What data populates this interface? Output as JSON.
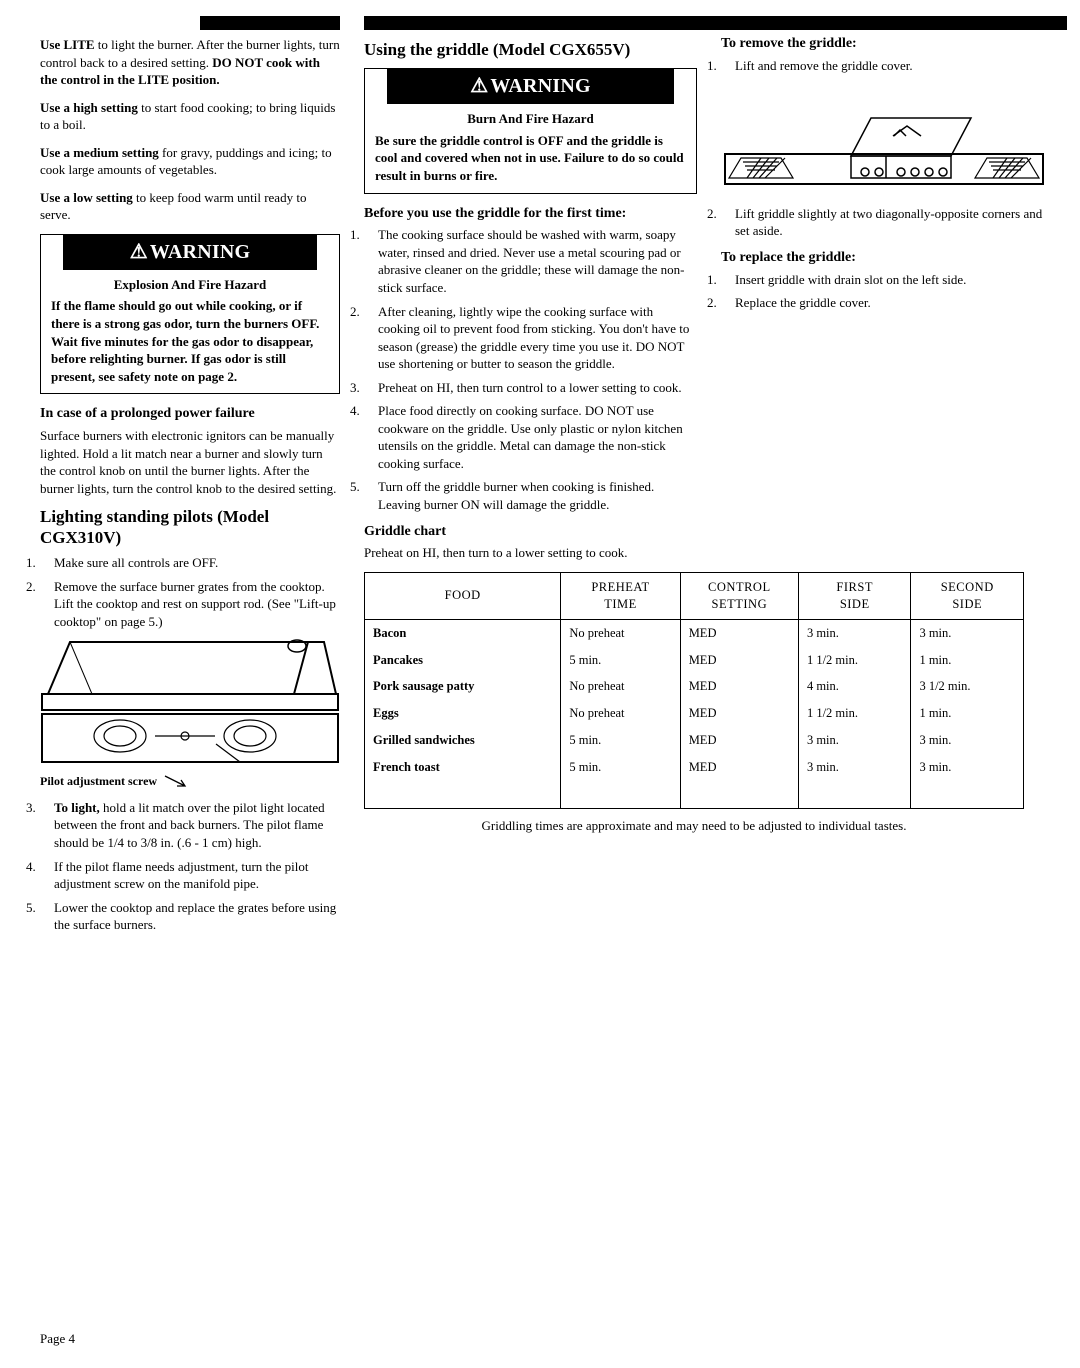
{
  "page_number": "Page 4",
  "left": {
    "p1": "Use LITE to light the burner. After the burner lights, turn control back to a desired setting. DO NOT cook with the control in the LITE position.",
    "p1_bold_phrases": [
      "Use LITE",
      "DO NOT cook with the control in the LITE position."
    ],
    "p2": "Use a high setting to start food cooking; to bring liquids to a boil.",
    "p3": "Use a medium setting for gravy, puddings and icing; to cook large amounts of vegetables.",
    "p4": "Use a low setting to keep food warm until ready to serve.",
    "warning": {
      "bar": "WARNING",
      "title": "Explosion And Fire Hazard",
      "body": "If the flame should go out while cooking, or if there is a strong gas odor, turn the burners OFF. Wait five minutes for the gas odor to disappear, before relighting burner. If gas odor is still present, see safety note on page 2."
    },
    "prolonged_power_heading": "In case of a prolonged power failure",
    "prolonged_power_body": "Surface burners with electronic ignitors can be manually lighted. Hold a lit match near a burner and slowly turn the control knob on until the burner lights. After the burner lights, turn the control knob to the desired setting.",
    "lighting_heading": "Lighting standing pilots (Model CGX310V)",
    "lighting_steps_pre": [
      "Make sure all controls are OFF.",
      "Remove the surface burner grates from the cooktop. Lift the cooktop and rest on support rod. (See \"Lift-up cooktop\" on page 5.)"
    ],
    "fig_caption": "Pilot adjustment screw",
    "lighting_steps_post": [
      "To light, hold a lit match over the pilot light located between the front and back burners. The pilot flame should be 1/4 to 3/8 in. (.6 - 1 cm) high.",
      "If the pilot flame needs adjustment, turn the pilot adjustment screw on the manifold pipe.",
      "Lower the cooktop and replace the grates before using the surface burners."
    ]
  },
  "mid": {
    "heading": "Using the griddle (Model CGX655V)",
    "warning": {
      "bar": "WARNING",
      "title": "Burn And Fire Hazard",
      "body": "Be sure the griddle control is OFF and the griddle is cool and covered when not in use. Failure to do so could result in burns or fire."
    },
    "before_heading": "Before you use the griddle for the first time:",
    "before_steps": [
      "The cooking surface should be washed with warm, soapy water, rinsed and dried. Never use a metal scouring pad or abrasive cleaner on the griddle; these will damage the non-stick surface.",
      "After cleaning, lightly wipe the cooking surface with cooking oil to prevent food from sticking. You don't have to season (grease) the griddle every time you use it. DO NOT use shortening or butter to season the griddle.",
      "Preheat on HI, then turn control to a lower setting to cook.",
      "Place food directly on cooking surface. DO NOT use cookware on the griddle. Use only plastic or nylon kitchen utensils on the griddle. Metal can damage the non-stick cooking surface.",
      "Turn off the griddle burner when cooking is finished. Leaving burner ON will damage the griddle."
    ],
    "chart_heading": "Griddle chart",
    "chart_intro": "Preheat on HI, then turn to a lower setting to cook.",
    "table": {
      "headers": [
        "FOOD",
        "PREHEAT TIME",
        "CONTROL SETTING",
        "FIRST SIDE",
        "SECOND SIDE"
      ],
      "rows": [
        [
          "Bacon",
          "No preheat",
          "MED",
          "3 min.",
          "3  min."
        ],
        [
          "Pancakes",
          "5 min.",
          "MED",
          "1 1/2 min.",
          "1 min."
        ],
        [
          "Pork sausage patty",
          "No preheat",
          "MED",
          "4 min.",
          "3 1/2 min."
        ],
        [
          "Eggs",
          "No preheat",
          "MED",
          "1 1/2 min.",
          "1 min."
        ],
        [
          "Grilled sandwiches",
          "5 min.",
          "MED",
          "3 min.",
          "3 min."
        ],
        [
          "French toast",
          "5 min.",
          "MED",
          "3 min.",
          "3 min."
        ]
      ]
    },
    "chart_note": "Griddling times are approximate and may need to be adjusted to individual tastes."
  },
  "right": {
    "remove_heading": "To remove the griddle:",
    "remove_steps_pre": [
      "Lift and remove the griddle cover."
    ],
    "remove_steps_post": [
      "Lift griddle slightly at  two diagonally-opposite corners and set aside."
    ],
    "replace_heading": "To replace the griddle:",
    "replace_steps": [
      "Insert griddle with drain slot on the left side.",
      "Replace the griddle cover."
    ]
  }
}
